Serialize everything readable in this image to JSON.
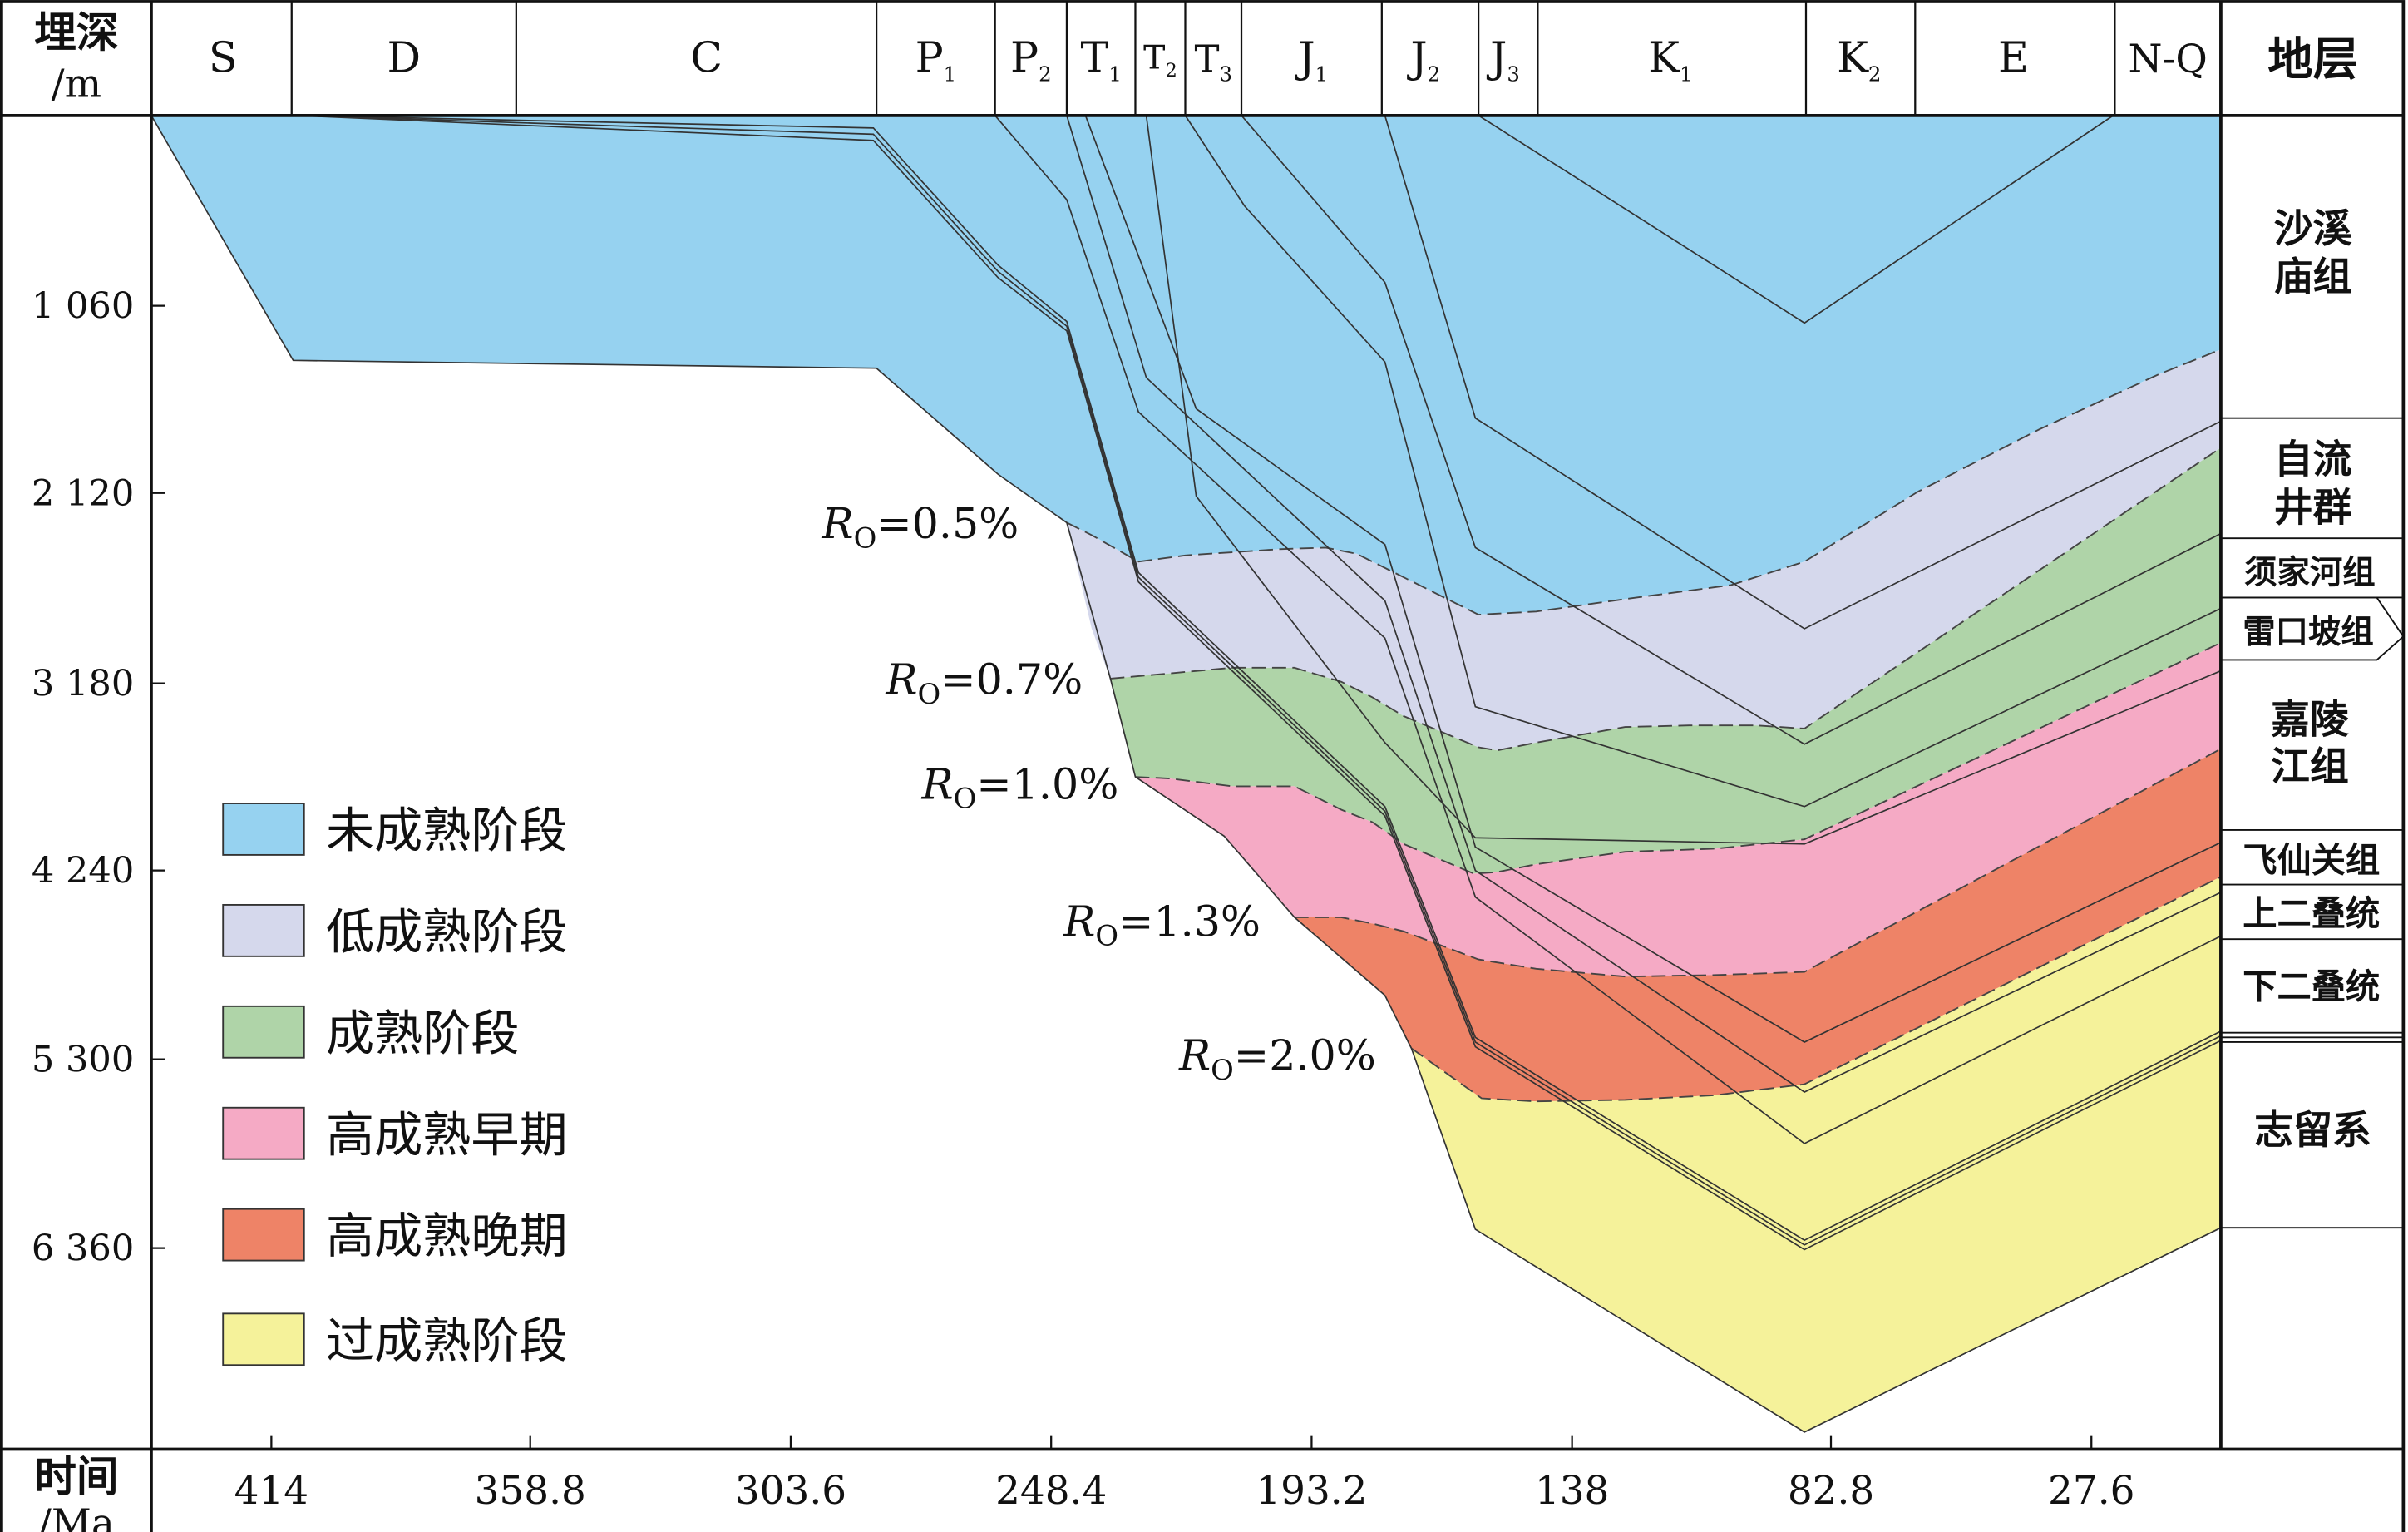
{
  "header": {
    "depth_label_top": "埋深",
    "depth_label_bottom": "/m",
    "strata_label": "地层",
    "periods": [
      {
        "main": "S",
        "sub": ""
      },
      {
        "main": "D",
        "sub": ""
      },
      {
        "main": "C",
        "sub": ""
      },
      {
        "main": "P",
        "sub": "1"
      },
      {
        "main": "P",
        "sub": "2"
      },
      {
        "main": "T",
        "sub": "1"
      },
      {
        "main": "T",
        "sub": "2"
      },
      {
        "main": "T",
        "sub": "3"
      },
      {
        "main": "J",
        "sub": "1"
      },
      {
        "main": "J",
        "sub": "2"
      },
      {
        "main": "J",
        "sub": "3"
      },
      {
        "main": "K",
        "sub": "1"
      },
      {
        "main": "K",
        "sub": "2"
      },
      {
        "main": "E",
        "sub": ""
      },
      {
        "main": "N-Q",
        "sub": ""
      }
    ]
  },
  "depth_ticks": [
    "1 060",
    "2 120",
    "3 180",
    "4 240",
    "5 300",
    "6 360"
  ],
  "time_axis": {
    "label_top": "时间",
    "label_bottom": "/Ma",
    "ticks": [
      "414",
      "358.8",
      "303.6",
      "248.4",
      "193.2",
      "138",
      "82.8",
      "27.6"
    ]
  },
  "formations": [
    {
      "lines": [
        "沙溪",
        "庙组"
      ]
    },
    {
      "lines": [
        "自流",
        "井群"
      ]
    },
    {
      "lines": [
        "须家河组"
      ]
    },
    {
      "lines": [
        "雷口坡组"
      ]
    },
    {
      "lines": [
        "嘉陵",
        "江组"
      ]
    },
    {
      "lines": [
        "飞仙关组"
      ]
    },
    {
      "lines": [
        "上二叠统"
      ]
    },
    {
      "lines": [
        "下二叠统"
      ]
    },
    {
      "lines": [
        "志留系"
      ]
    }
  ],
  "ro_labels": [
    {
      "symbol": "R",
      "sub": "O",
      "value": "=0.5%"
    },
    {
      "symbol": "R",
      "sub": "O",
      "value": "=0.7%"
    },
    {
      "symbol": "R",
      "sub": "O",
      "value": "=1.0%"
    },
    {
      "symbol": "R",
      "sub": "O",
      "value": "=1.3%"
    },
    {
      "symbol": "R",
      "sub": "O",
      "value": "=2.0%"
    }
  ],
  "legend": [
    {
      "label": "未成熟阶段",
      "color": "#96d2f0"
    },
    {
      "label": "低成熟阶段",
      "color": "#d5d8ec"
    },
    {
      "label": "成熟阶段",
      "color": "#afd4a8"
    },
    {
      "label": "高成熟早期",
      "color": "#f5aac5"
    },
    {
      "label": "高成熟晚期",
      "color": "#ee8367"
    },
    {
      "label": "过成熟阶段",
      "color": "#f5f29a"
    }
  ]
}
